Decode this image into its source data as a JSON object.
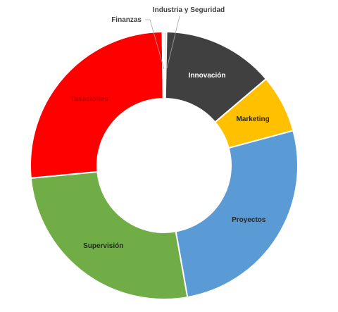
{
  "chart_data": {
    "type": "pie",
    "donut": true,
    "title": "",
    "legend": "none",
    "categories": [
      "Industria y Seguridad",
      "Innovación",
      "Marketing",
      "Proyectos",
      "Supervisión",
      "Tasaciones",
      "Finanzas"
    ],
    "values": [
      0.3,
      13.5,
      7.0,
      26.4,
      26.3,
      26.3,
      0.2
    ],
    "colors": [
      "#D9D9D9",
      "#404040",
      "#FFC000",
      "#5B9BD5",
      "#70AD47",
      "#FF0000",
      "#A5A5A5"
    ],
    "label_colors": [
      "#404040",
      "#FFFFFF",
      "#262626",
      "#262626",
      "#262626",
      "#C00000",
      "#404040"
    ]
  }
}
